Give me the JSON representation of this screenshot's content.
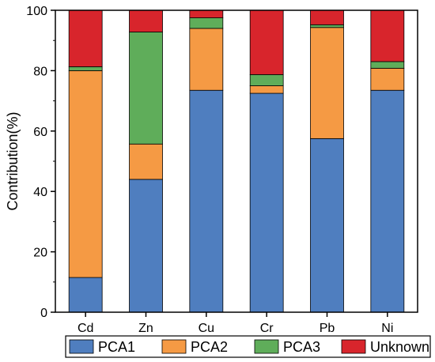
{
  "chart_data": {
    "type": "bar",
    "stacked": true,
    "categories": [
      "Cd",
      "Zn",
      "Cu",
      "Cr",
      "Pb",
      "Ni"
    ],
    "series": [
      {
        "name": "PCA1",
        "color": "#4F7EBF",
        "values": [
          11.5,
          44,
          73.5,
          72.5,
          57.5,
          73.5
        ]
      },
      {
        "name": "PCA2",
        "color": "#F59A44",
        "values": [
          68.5,
          11.7,
          20.5,
          2.5,
          36.8,
          7.3
        ]
      },
      {
        "name": "PCA3",
        "color": "#5FAD5A",
        "values": [
          1.3,
          37.1,
          3.5,
          3.7,
          0.9,
          2.2
        ]
      },
      {
        "name": "Unknown",
        "color": "#D8252C",
        "values": [
          18.7,
          7.2,
          2.5,
          21.3,
          4.8,
          17.0
        ]
      }
    ],
    "xlabel": "",
    "ylabel": "Contribution(%)",
    "ylim": [
      0,
      100
    ],
    "yticks": [
      "0",
      "20",
      "40",
      "60",
      "80",
      "100"
    ],
    "grid": false,
    "legend_position": "bottom"
  }
}
